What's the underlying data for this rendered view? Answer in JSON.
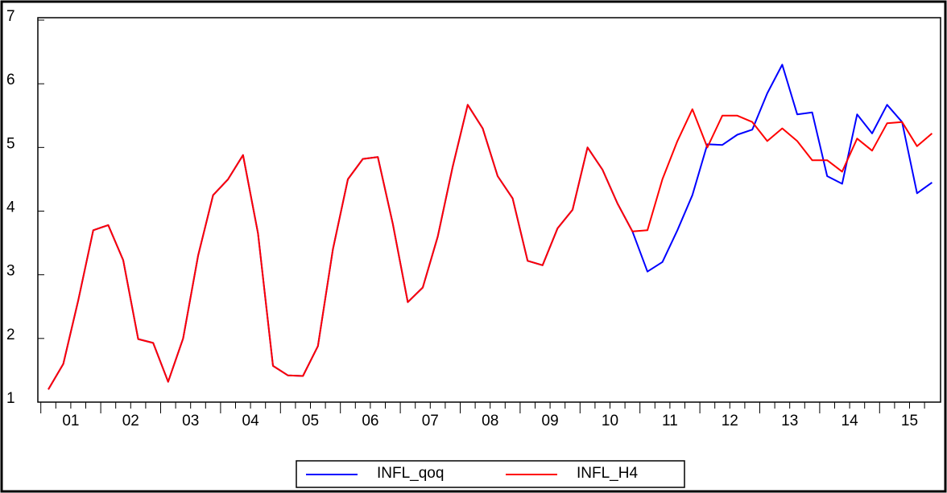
{
  "chart_data": {
    "type": "line",
    "categories": [
      "01",
      null,
      null,
      null,
      "02",
      null,
      null,
      null,
      "03",
      null,
      null,
      null,
      "04",
      null,
      null,
      null,
      "05",
      null,
      null,
      null,
      "06",
      null,
      null,
      null,
      "07",
      null,
      null,
      null,
      "08",
      null,
      null,
      null,
      "09",
      null,
      null,
      null,
      "10",
      null,
      null,
      null,
      "11",
      null,
      null,
      null,
      "12",
      null,
      null,
      null,
      "13",
      null,
      null,
      null,
      "14",
      null,
      null,
      null,
      "15",
      null,
      null,
      null
    ],
    "series": [
      {
        "name": "INFL_qoq",
        "color": "#0000ff",
        "values": [
          1.2,
          1.6,
          2.6,
          3.7,
          3.78,
          3.23,
          1.99,
          1.93,
          1.32,
          2.0,
          3.3,
          4.25,
          4.5,
          4.88,
          3.65,
          1.57,
          1.42,
          1.41,
          1.88,
          3.4,
          4.5,
          4.82,
          4.85,
          3.8,
          2.57,
          2.8,
          3.6,
          4.7,
          5.67,
          5.3,
          4.55,
          4.2,
          3.22,
          3.15,
          3.73,
          4.02,
          5.0,
          4.65,
          4.12,
          3.68,
          3.05,
          3.2,
          3.7,
          4.25,
          5.05,
          5.04,
          5.2,
          5.28,
          5.85,
          6.3,
          5.52,
          5.55,
          4.55,
          4.43,
          5.52,
          5.22,
          5.67,
          5.4,
          4.28,
          4.45
        ]
      },
      {
        "name": "INFL_H4",
        "color": "#ff0000",
        "values": [
          1.2,
          1.6,
          2.6,
          3.7,
          3.78,
          3.23,
          1.99,
          1.93,
          1.32,
          2.0,
          3.3,
          4.25,
          4.5,
          4.88,
          3.65,
          1.57,
          1.42,
          1.41,
          1.88,
          3.4,
          4.5,
          4.82,
          4.85,
          3.8,
          2.57,
          2.8,
          3.6,
          4.7,
          5.67,
          5.3,
          4.55,
          4.2,
          3.22,
          3.15,
          3.73,
          4.02,
          5.0,
          4.65,
          4.12,
          3.68,
          3.7,
          4.5,
          5.1,
          5.6,
          5.0,
          5.5,
          5.5,
          5.4,
          5.1,
          5.3,
          5.1,
          4.8,
          4.8,
          4.62,
          5.14,
          4.95,
          5.38,
          5.4,
          5.02,
          5.22
        ]
      }
    ],
    "ylim": [
      1,
      7
    ],
    "yticks": [
      1,
      2,
      3,
      4,
      5,
      6,
      7
    ],
    "grid": false,
    "legend": "bottom"
  }
}
